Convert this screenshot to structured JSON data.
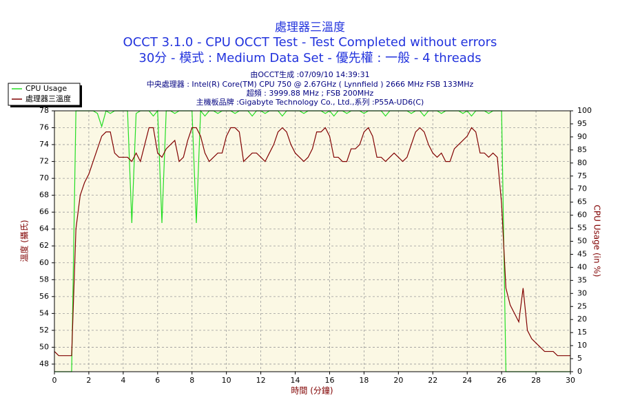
{
  "chart_data": {
    "type": "line",
    "title": "處理器三溫度",
    "subtitle": [
      "OCCT 3.1.0 - CPU OCCT Test - Test Completed without errors",
      "30分 - 模式 : Medium Data Set - 優先權 : 一般 - 4 threads"
    ],
    "info": [
      "由OCCT生成 :07/09/10 14:39:31",
      "中央處理器 : Intel(R) Core(TM) CPU 750 @ 2.67GHz ( Lynnfield ) 2666 MHz FSB 133MHz",
      "超頻 : 3999.88 MHz ; FSB 200MHz",
      "主機板品牌 :Gigabyte Technology Co., Ltd.,系列 :P55A-UD6(C)"
    ],
    "xlabel": "時間 (分鐘)",
    "ylabel": "溫度 (攝氏)",
    "y2label": "CPU Usage (in %)",
    "grid": true,
    "legend": "top-left",
    "xlim": [
      0,
      30
    ],
    "xticks": [
      0,
      2,
      4,
      6,
      8,
      10,
      12,
      14,
      16,
      18,
      20,
      22,
      24,
      26,
      28,
      30
    ],
    "ylim": [
      47.1,
      78
    ],
    "yticks": [
      48,
      50,
      52,
      54,
      56,
      58,
      60,
      62,
      64,
      66,
      68,
      70,
      72,
      74,
      76,
      78
    ],
    "y2lim": [
      0,
      100
    ],
    "y2ticks": [
      0,
      5,
      10,
      15,
      20,
      25,
      30,
      35,
      40,
      45,
      50,
      55,
      60,
      65,
      70,
      75,
      80,
      85,
      90,
      95,
      100
    ],
    "x": [
      0,
      0.25,
      0.5,
      0.75,
      1,
      1.25,
      1.5,
      1.75,
      2,
      2.25,
      2.5,
      2.75,
      3,
      3.25,
      3.5,
      3.75,
      4,
      4.25,
      4.5,
      4.75,
      5,
      5.25,
      5.5,
      5.75,
      6,
      6.25,
      6.5,
      6.75,
      7,
      7.25,
      7.5,
      7.75,
      8,
      8.25,
      8.5,
      8.75,
      9,
      9.25,
      9.5,
      9.75,
      10,
      10.25,
      10.5,
      10.75,
      11,
      11.25,
      11.5,
      11.75,
      12,
      12.25,
      12.5,
      12.75,
      13,
      13.25,
      13.5,
      13.75,
      14,
      14.25,
      14.5,
      14.75,
      15,
      15.25,
      15.5,
      15.75,
      16,
      16.25,
      16.5,
      16.75,
      17,
      17.25,
      17.5,
      17.75,
      18,
      18.25,
      18.5,
      18.75,
      19,
      19.25,
      19.5,
      19.75,
      20,
      20.25,
      20.5,
      20.75,
      21,
      21.25,
      21.5,
      21.75,
      22,
      22.25,
      22.5,
      22.75,
      23,
      23.25,
      23.5,
      23.75,
      24,
      24.25,
      24.5,
      24.75,
      25,
      25.25,
      25.5,
      25.75,
      26,
      26.25,
      26.5,
      26.75,
      27,
      27.25,
      27.5,
      27.75,
      28,
      28.25,
      28.5,
      28.75,
      29,
      29.25,
      29.5,
      29.75,
      30
    ],
    "series": [
      {
        "name": "CPU Usage",
        "color": "#22dd22",
        "axis": "y2",
        "values": [
          0,
          0,
          0,
          0,
          0,
          100,
          100,
          100,
          100,
          100,
          99,
          94,
          100,
          99,
          100,
          100,
          100,
          100,
          57,
          99,
          100,
          100,
          100,
          98,
          100,
          57,
          100,
          100,
          99,
          100,
          100,
          100,
          100,
          57,
          100,
          98,
          100,
          100,
          99,
          100,
          100,
          100,
          99,
          100,
          100,
          100,
          98,
          100,
          100,
          99,
          100,
          100,
          100,
          98,
          100,
          100,
          100,
          100,
          99,
          100,
          100,
          100,
          100,
          99,
          100,
          98,
          100,
          100,
          99,
          100,
          100,
          100,
          99,
          100,
          100,
          100,
          100,
          98,
          100,
          100,
          100,
          100,
          100,
          99,
          100,
          100,
          98,
          100,
          100,
          100,
          99,
          100,
          100,
          100,
          100,
          99,
          100,
          98,
          100,
          100,
          100,
          99,
          100,
          100,
          100,
          0,
          0,
          0,
          0,
          0,
          0,
          0,
          0,
          0,
          0,
          0,
          0,
          0,
          0,
          0,
          0
        ]
      },
      {
        "name": "處理器三溫度",
        "color": "#800000",
        "values": [
          49.5,
          49,
          49,
          49,
          49,
          64,
          68,
          69.5,
          70.5,
          72,
          73.5,
          75,
          75.5,
          75.5,
          73,
          72.5,
          72.5,
          72.5,
          72,
          73,
          72,
          74,
          76,
          76,
          73,
          72.5,
          73.5,
          74,
          74.5,
          72,
          72.5,
          74.5,
          76,
          76,
          75,
          73,
          72,
          72.5,
          73,
          73,
          75,
          76,
          76,
          75.5,
          72,
          72.5,
          73,
          73,
          72.5,
          72,
          73,
          74,
          75.5,
          76,
          75.5,
          74,
          73,
          72.5,
          72,
          72.5,
          73.5,
          75.5,
          75.5,
          76,
          75,
          72.5,
          72.5,
          72,
          72,
          73.5,
          73.5,
          74,
          75.5,
          76,
          75,
          72.5,
          72.5,
          72,
          72.5,
          73,
          72.5,
          72,
          72.5,
          74,
          75.5,
          76,
          75.5,
          74,
          73,
          72.5,
          73,
          72,
          72,
          73.5,
          74,
          74.5,
          75,
          76,
          75.5,
          73,
          73,
          72.5,
          73,
          72.5,
          67,
          57,
          55,
          54,
          53,
          57,
          52,
          51,
          50.5,
          50,
          49.5,
          49.5,
          49.5,
          49,
          49,
          49,
          49
        ]
      }
    ]
  }
}
